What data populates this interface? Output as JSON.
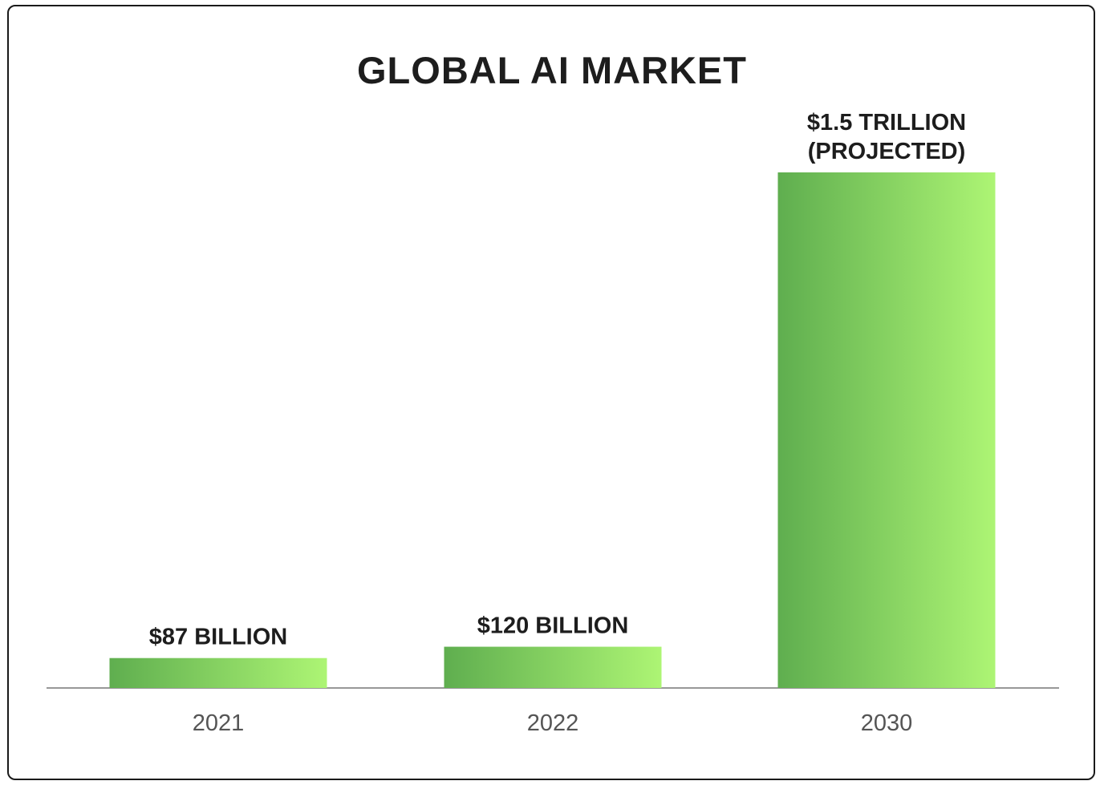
{
  "chart_data": {
    "type": "bar",
    "title": "GLOBAL AI MARKET",
    "categories": [
      "2021",
      "2022",
      "2030"
    ],
    "values": [
      87,
      120,
      1500
    ],
    "value_unit": "billion USD",
    "data_labels": [
      [
        "$87 BILLION"
      ],
      [
        "$120 BILLION"
      ],
      [
        "$1.5 TRILLION",
        "(PROJECTED)"
      ]
    ],
    "xlabel": "",
    "ylabel": "",
    "grid": false,
    "legend": "none",
    "colors": {
      "bar_gradient_start": "#5fae4f",
      "bar_gradient_end": "#adf574",
      "axis": "#777777",
      "text": "#1d1d1d",
      "tick_text": "#555555",
      "border": "#1a1a1a"
    }
  }
}
